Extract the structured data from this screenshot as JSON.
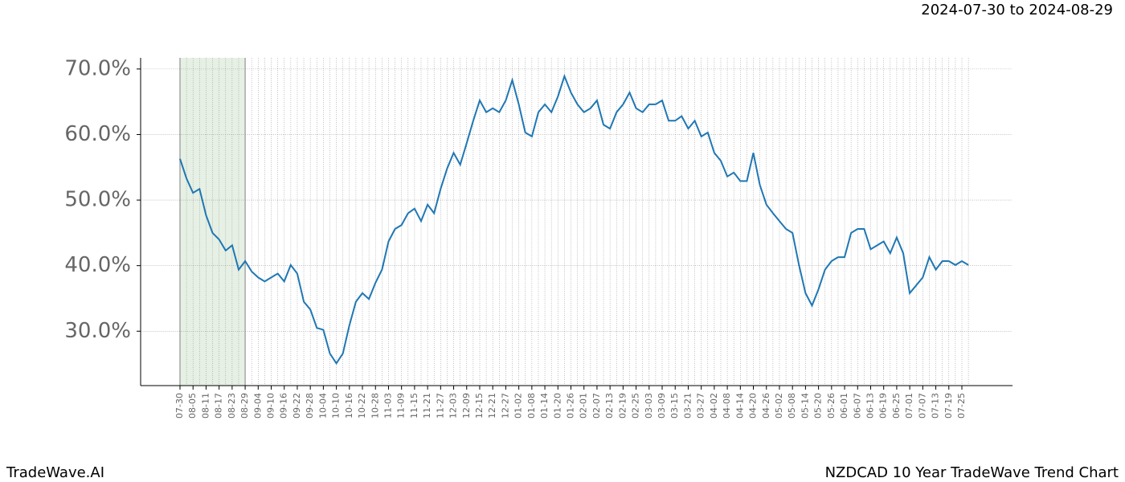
{
  "header": {
    "range": "2024-07-30 to 2024-08-29"
  },
  "footer": {
    "brand": "TradeWave.AI",
    "caption": "NZDCAD 10 Year TradeWave Trend Chart"
  },
  "chart_data": {
    "type": "line",
    "categories": [
      "07-30",
      null,
      "08-05",
      null,
      "08-11",
      null,
      "08-17",
      null,
      "08-23",
      null,
      "08-29",
      null,
      "09-04",
      null,
      "09-10",
      null,
      "09-16",
      null,
      "09-22",
      null,
      "09-28",
      null,
      "10-04",
      null,
      "10-10",
      null,
      "10-16",
      null,
      "10-22",
      null,
      "10-28",
      null,
      "11-03",
      null,
      "11-09",
      null,
      "11-15",
      null,
      "11-21",
      null,
      "11-27",
      null,
      "12-03",
      null,
      "12-09",
      null,
      "12-15",
      null,
      "12-21",
      null,
      "12-27",
      null,
      "01-02",
      null,
      "01-08",
      null,
      "01-14",
      null,
      "01-20",
      null,
      "01-26",
      null,
      "02-01",
      null,
      "02-07",
      null,
      "02-13",
      null,
      "02-19",
      null,
      "02-25",
      null,
      "03-03",
      null,
      "03-09",
      null,
      "03-15",
      null,
      "03-21",
      null,
      "03-27",
      null,
      "04-02",
      null,
      "04-08",
      null,
      "04-14",
      null,
      "04-20",
      null,
      "04-26",
      null,
      "05-02",
      null,
      "05-08",
      null,
      "05-14",
      null,
      "05-20",
      null,
      "05-26",
      null,
      "06-01",
      null,
      "06-07",
      null,
      "06-13",
      null,
      "06-19",
      null,
      "06-25",
      null,
      "07-01",
      null,
      "07-07",
      null,
      "07-13",
      null,
      "07-19",
      null,
      "07-25",
      null
    ],
    "values": [
      56.3,
      53.3,
      51.1,
      51.7,
      47.7,
      45.0,
      44.0,
      42.3,
      43.1,
      39.4,
      40.7,
      39.1,
      38.2,
      37.6,
      38.2,
      38.8,
      37.6,
      40.1,
      38.8,
      34.5,
      33.3,
      30.5,
      30.2,
      26.6,
      25.1,
      26.6,
      30.9,
      34.5,
      35.8,
      34.9,
      37.4,
      39.4,
      43.7,
      45.6,
      46.2,
      48.0,
      48.7,
      46.8,
      49.3,
      48.0,
      51.7,
      54.8,
      57.2,
      55.4,
      58.7,
      62.1,
      65.2,
      63.4,
      64.0,
      63.4,
      65.2,
      68.3,
      64.6,
      60.3,
      59.7,
      63.4,
      64.6,
      63.4,
      65.8,
      68.9,
      66.4,
      64.6,
      63.4,
      64.0,
      65.2,
      61.5,
      60.9,
      63.4,
      64.6,
      66.4,
      64.0,
      63.4,
      64.6,
      64.6,
      65.2,
      62.1,
      62.1,
      62.8,
      60.9,
      62.1,
      59.7,
      60.3,
      57.2,
      56.0,
      53.6,
      54.2,
      52.9,
      52.9,
      57.2,
      52.3,
      49.3,
      48.0,
      46.8,
      45.6,
      45.0,
      40.1,
      35.8,
      33.9,
      36.4,
      39.4,
      40.7,
      41.3,
      41.3,
      45.0,
      45.6,
      45.6,
      42.5,
      43.1,
      43.7,
      41.9,
      44.3,
      41.9,
      35.8,
      37.0,
      38.2,
      41.3,
      39.4,
      40.7,
      40.7,
      40.1,
      40.7,
      40.1
    ],
    "color": "#1f77b4",
    "highlight": [
      "07-30",
      "08-29"
    ],
    "highlight_color": "#e6f0e4",
    "ylim": [
      21.7,
      71.7
    ],
    "yticks": [
      {
        "value": 30,
        "label": "30.0%"
      },
      {
        "value": 40,
        "label": "40.0%"
      },
      {
        "value": 50,
        "label": "50.0%"
      },
      {
        "value": 60,
        "label": "60.0%"
      },
      {
        "value": 70,
        "label": "70.0%"
      }
    ],
    "grid": true
  }
}
